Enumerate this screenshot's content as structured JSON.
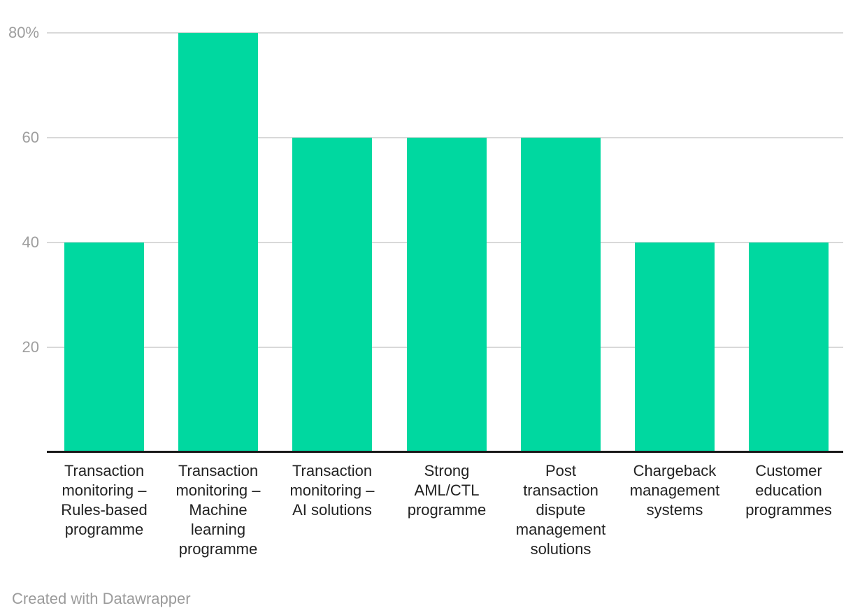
{
  "chart_data": {
    "type": "bar",
    "title": "",
    "xlabel": "",
    "ylabel": "",
    "value_unit": "%",
    "categories": [
      "Transaction monitoring – Rules-based programme",
      "Transaction monitoring – Machine learning programme",
      "Transaction monitoring – AI solutions",
      "Strong AML/CTL programme",
      "Post transaction dispute management solutions",
      "Chargeback management systems",
      "Customer education programmes"
    ],
    "category_label_lines": [
      [
        "Transaction",
        "monitoring –",
        "Rules-based",
        "programme"
      ],
      [
        "Transaction",
        "monitoring –",
        "Machine",
        "learning",
        "programme"
      ],
      [
        "Transaction",
        "monitoring –",
        "AI solutions"
      ],
      [
        "Strong",
        "AML/CTL",
        "programme"
      ],
      [
        "Post",
        "transaction",
        "dispute",
        "management",
        "solutions"
      ],
      [
        "Chargeback",
        "management",
        "systems"
      ],
      [
        "Customer",
        "education",
        "programmes"
      ]
    ],
    "values": [
      40,
      80,
      60,
      60,
      60,
      40,
      40
    ],
    "y_ticks": [
      20,
      40,
      60,
      80
    ],
    "y_tick_labels": [
      "20",
      "40",
      "60",
      "80%"
    ],
    "ylim": [
      0,
      86
    ],
    "grid": "horizontal",
    "legend_position": "none",
    "bar_color": "#00d8a0"
  },
  "style": {
    "accent": "#00d8a0",
    "grid_color": "#d9d9d9",
    "axis_color": "#1a1a1a",
    "tick_text_color": "#9e9e9e",
    "label_text_color": "#222222",
    "credit_text_color": "#9b9b9b",
    "background": "#ffffff"
  },
  "footer": {
    "credit": "Created with Datawrapper"
  }
}
